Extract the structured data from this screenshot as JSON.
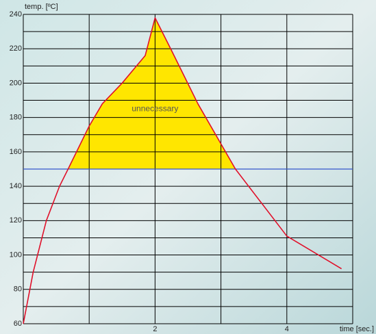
{
  "chart_data": {
    "type": "line",
    "x_label": "time [sec.]",
    "y_label": "temp. [ºC]",
    "annotation": "unnecessary",
    "x": [
      0,
      0.15,
      0.35,
      0.55,
      0.68,
      1.0,
      1.2,
      1.5,
      1.85,
      2.0,
      2.25,
      2.65,
      3.22,
      4.0,
      4.83
    ],
    "series": [
      {
        "color": "#e0102a",
        "values": [
          60,
          90,
          120,
          140,
          150,
          175,
          188,
          200,
          216,
          238,
          219,
          188,
          150,
          111,
          92
        ]
      }
    ],
    "threshold": 150,
    "threshold_color": "#3355cc",
    "fill_color": "#ffe600",
    "xlim": [
      0,
      5
    ],
    "ylim": [
      60,
      240
    ],
    "xticks": [
      2,
      4
    ],
    "xgrid": [
      1,
      2,
      3,
      4
    ],
    "yticks": [
      60,
      80,
      100,
      120,
      140,
      160,
      180,
      200,
      220,
      240
    ],
    "yminor": [
      70,
      90,
      110,
      130,
      150,
      170,
      190,
      210,
      230
    ],
    "grid": true
  }
}
